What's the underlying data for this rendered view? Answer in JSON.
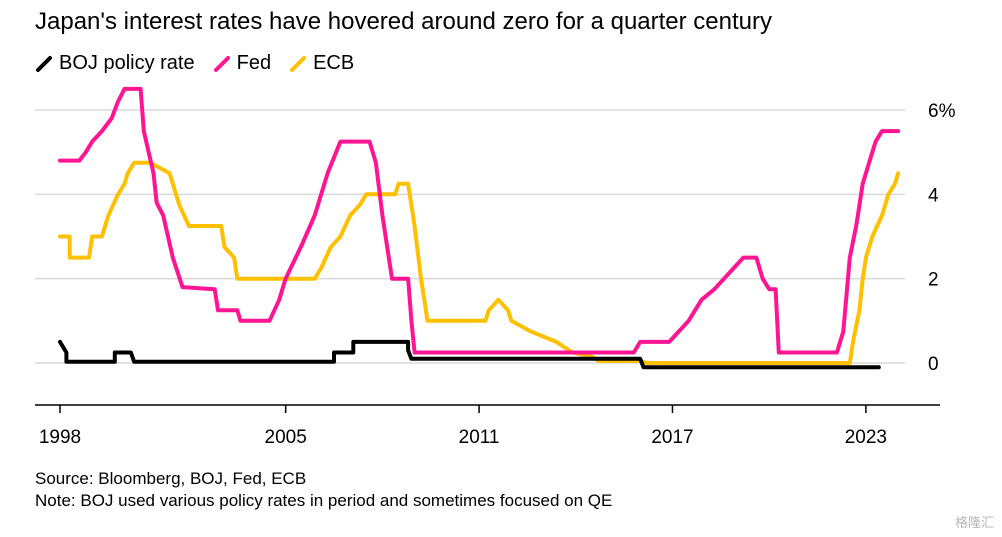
{
  "title": "Japan's interest rates have hovered around zero for a quarter century",
  "source": "Source: Bloomberg, BOJ, Fed, ECB",
  "note": "Note: BOJ used various policy rates in period and sometimes focused on QE",
  "watermark": "格隆汇",
  "chart_data": {
    "type": "line",
    "grid": true,
    "legend_position": "top-left",
    "xlim": [
      1998,
      2024.5
    ],
    "ylim": [
      -1.2,
      6.5
    ],
    "x_ticks": [
      1998,
      2005,
      2011,
      2017,
      2023
    ],
    "x_tick_labels": [
      "1998",
      "2005",
      "2011",
      "2017",
      "2023"
    ],
    "y_ticks": [
      0,
      2,
      4,
      6
    ],
    "y_tick_labels": [
      "0",
      "2",
      "4",
      "6%"
    ],
    "series": [
      {
        "name": "BOJ policy rate",
        "color": "#000000",
        "points": [
          [
            1998.0,
            0.5
          ],
          [
            1998.2,
            0.25
          ],
          [
            1998.2,
            0.03
          ],
          [
            1999.7,
            0.03
          ],
          [
            1999.7,
            0.25
          ],
          [
            2000.2,
            0.25
          ],
          [
            2000.3,
            0.03
          ],
          [
            2006.5,
            0.03
          ],
          [
            2006.5,
            0.25
          ],
          [
            2007.1,
            0.25
          ],
          [
            2007.1,
            0.5
          ],
          [
            2008.8,
            0.5
          ],
          [
            2008.8,
            0.3
          ],
          [
            2008.9,
            0.1
          ],
          [
            2016.0,
            0.1
          ],
          [
            2016.1,
            -0.1
          ],
          [
            2023.4,
            -0.1
          ]
        ]
      },
      {
        "name": "Fed",
        "color": "#ff1493",
        "points": [
          [
            1998.0,
            4.8
          ],
          [
            1998.6,
            4.8
          ],
          [
            1998.8,
            5.0
          ],
          [
            1999.0,
            5.25
          ],
          [
            1999.3,
            5.5
          ],
          [
            1999.6,
            5.8
          ],
          [
            1999.8,
            6.2
          ],
          [
            2000.0,
            6.5
          ],
          [
            2000.5,
            6.5
          ],
          [
            2000.6,
            5.5
          ],
          [
            2000.9,
            4.5
          ],
          [
            2001.0,
            3.8
          ],
          [
            2001.2,
            3.5
          ],
          [
            2001.5,
            2.5
          ],
          [
            2001.8,
            1.8
          ],
          [
            2002.8,
            1.75
          ],
          [
            2002.9,
            1.25
          ],
          [
            2003.5,
            1.25
          ],
          [
            2003.6,
            1.0
          ],
          [
            2004.5,
            1.0
          ],
          [
            2004.8,
            1.5
          ],
          [
            2005.0,
            2.0
          ],
          [
            2005.5,
            2.8
          ],
          [
            2005.9,
            3.5
          ],
          [
            2006.3,
            4.5
          ],
          [
            2006.7,
            5.25
          ],
          [
            2007.6,
            5.25
          ],
          [
            2007.8,
            4.75
          ],
          [
            2008.0,
            3.5
          ],
          [
            2008.2,
            2.5
          ],
          [
            2008.3,
            2.0
          ],
          [
            2008.8,
            2.0
          ],
          [
            2008.9,
            1.0
          ],
          [
            2009.0,
            0.25
          ],
          [
            2015.8,
            0.25
          ],
          [
            2016.0,
            0.5
          ],
          [
            2016.9,
            0.5
          ],
          [
            2017.2,
            0.75
          ],
          [
            2017.5,
            1.0
          ],
          [
            2017.9,
            1.5
          ],
          [
            2018.3,
            1.75
          ],
          [
            2018.6,
            2.0
          ],
          [
            2018.9,
            2.25
          ],
          [
            2019.2,
            2.5
          ],
          [
            2019.6,
            2.5
          ],
          [
            2019.8,
            2.0
          ],
          [
            2020.0,
            1.75
          ],
          [
            2020.2,
            1.75
          ],
          [
            2020.3,
            0.25
          ],
          [
            2022.1,
            0.25
          ],
          [
            2022.3,
            0.75
          ],
          [
            2022.5,
            2.5
          ],
          [
            2022.7,
            3.25
          ],
          [
            2022.9,
            4.25
          ],
          [
            2023.1,
            4.75
          ],
          [
            2023.3,
            5.25
          ],
          [
            2023.5,
            5.5
          ],
          [
            2024.0,
            5.5
          ]
        ]
      },
      {
        "name": "ECB",
        "color": "#ffc000",
        "points": [
          [
            1998.0,
            3.0
          ],
          [
            1998.3,
            3.0
          ],
          [
            1998.3,
            2.5
          ],
          [
            1998.9,
            2.5
          ],
          [
            1999.0,
            3.0
          ],
          [
            1999.3,
            3.0
          ],
          [
            1999.5,
            3.5
          ],
          [
            1999.8,
            4.0
          ],
          [
            2000.0,
            4.25
          ],
          [
            2000.1,
            4.5
          ],
          [
            2000.3,
            4.75
          ],
          [
            2000.8,
            4.75
          ],
          [
            2001.4,
            4.5
          ],
          [
            2001.6,
            4.0
          ],
          [
            2001.7,
            3.75
          ],
          [
            2002.0,
            3.25
          ],
          [
            2003.0,
            3.25
          ],
          [
            2003.1,
            2.75
          ],
          [
            2003.4,
            2.5
          ],
          [
            2003.5,
            2.0
          ],
          [
            2005.9,
            2.0
          ],
          [
            2006.1,
            2.25
          ],
          [
            2006.4,
            2.75
          ],
          [
            2006.7,
            3.0
          ],
          [
            2007.0,
            3.5
          ],
          [
            2007.3,
            3.75
          ],
          [
            2007.5,
            4.0
          ],
          [
            2008.4,
            4.0
          ],
          [
            2008.5,
            4.25
          ],
          [
            2008.8,
            4.25
          ],
          [
            2009.0,
            3.25
          ],
          [
            2009.2,
            2.0
          ],
          [
            2009.3,
            1.5
          ],
          [
            2009.4,
            1.0
          ],
          [
            2011.2,
            1.0
          ],
          [
            2011.3,
            1.25
          ],
          [
            2011.6,
            1.5
          ],
          [
            2011.9,
            1.25
          ],
          [
            2012.0,
            1.0
          ],
          [
            2012.6,
            0.75
          ],
          [
            2013.4,
            0.5
          ],
          [
            2013.9,
            0.25
          ],
          [
            2014.5,
            0.15
          ],
          [
            2014.7,
            0.05
          ],
          [
            2016.0,
            0.05
          ],
          [
            2016.2,
            0.0
          ],
          [
            2022.5,
            0.0
          ],
          [
            2022.6,
            0.5
          ],
          [
            2022.8,
            1.25
          ],
          [
            2022.9,
            2.0
          ],
          [
            2023.0,
            2.5
          ],
          [
            2023.2,
            3.0
          ],
          [
            2023.5,
            3.5
          ],
          [
            2023.7,
            4.0
          ],
          [
            2023.9,
            4.25
          ],
          [
            2024.0,
            4.5
          ]
        ]
      }
    ]
  }
}
